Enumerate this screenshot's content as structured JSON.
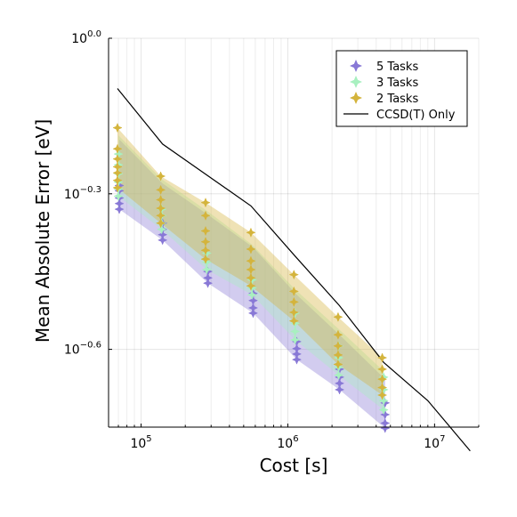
{
  "chart_data": {
    "type": "scatter",
    "title": "",
    "xlabel": "Cost [s]",
    "ylabel": "Mean Absolute Error [eV]",
    "x_scale": "log10",
    "y_scale": "log10",
    "xlim": [
      60000,
      20000000
    ],
    "ylim_log10": [
      -0.75,
      0.0
    ],
    "grid": true,
    "legend_position": "top-right",
    "x_ticks": [
      {
        "value": 100000,
        "base": "10",
        "exp": "5"
      },
      {
        "value": 1000000,
        "base": "10",
        "exp": "6"
      },
      {
        "value": 10000000,
        "base": "10",
        "exp": "7"
      }
    ],
    "y_ticks": [
      {
        "log10": 0.0,
        "base": "10",
        "exp": "0.0"
      },
      {
        "log10": -0.3,
        "base": "10",
        "exp": "−0.3"
      },
      {
        "log10": -0.6,
        "base": "10",
        "exp": "−0.6"
      }
    ],
    "series": [
      {
        "name": "5 Tasks",
        "color": "#8878d6",
        "marker": "star4",
        "band": {
          "x": [
            71000,
            140000,
            285000,
            580000,
            1150000,
            2250000,
            4600000
          ],
          "lower": [
            0.468,
            0.408,
            0.337,
            0.295,
            0.24,
            0.21,
            0.177
          ],
          "upper": [
            0.638,
            0.525,
            0.457,
            0.395,
            0.32,
            0.268,
            0.22
          ]
        },
        "points": [
          [
            71000,
            0.468
          ],
          [
            71000,
            0.48
          ],
          [
            71000,
            0.492
          ],
          [
            71000,
            0.508
          ],
          [
            71000,
            0.52
          ],
          [
            140000,
            0.408
          ],
          [
            140000,
            0.418
          ],
          [
            140000,
            0.428
          ],
          [
            140000,
            0.44
          ],
          [
            285000,
            0.337
          ],
          [
            285000,
            0.345
          ],
          [
            285000,
            0.355
          ],
          [
            580000,
            0.295
          ],
          [
            580000,
            0.302
          ],
          [
            580000,
            0.312
          ],
          [
            580000,
            0.322
          ],
          [
            1150000,
            0.24
          ],
          [
            1150000,
            0.246
          ],
          [
            1150000,
            0.252
          ],
          [
            1150000,
            0.26
          ],
          [
            2250000,
            0.21
          ],
          [
            2250000,
            0.216
          ],
          [
            2250000,
            0.222
          ],
          [
            2250000,
            0.23
          ],
          [
            4600000,
            0.177
          ],
          [
            4600000,
            0.181
          ],
          [
            4600000,
            0.188
          ],
          [
            4600000,
            0.198
          ]
        ]
      },
      {
        "name": "3 Tasks",
        "color": "#a8f0c0",
        "marker": "star4",
        "band": {
          "x": [
            70000,
            138000,
            280000,
            570000,
            1120000,
            2220000,
            4500000
          ],
          "lower": [
            0.496,
            0.428,
            0.358,
            0.32,
            0.262,
            0.224,
            0.192
          ],
          "upper": [
            0.65,
            0.535,
            0.465,
            0.4,
            0.328,
            0.275,
            0.228
          ]
        },
        "points": [
          [
            70000,
            0.496
          ],
          [
            70000,
            0.512
          ],
          [
            70000,
            0.528
          ],
          [
            70000,
            0.548
          ],
          [
            70000,
            0.57
          ],
          [
            70000,
            0.598
          ],
          [
            138000,
            0.428
          ],
          [
            138000,
            0.44
          ],
          [
            138000,
            0.455
          ],
          [
            138000,
            0.468
          ],
          [
            280000,
            0.358
          ],
          [
            280000,
            0.37
          ],
          [
            280000,
            0.385
          ],
          [
            570000,
            0.32
          ],
          [
            570000,
            0.33
          ],
          [
            570000,
            0.342
          ],
          [
            1120000,
            0.262
          ],
          [
            1120000,
            0.272
          ],
          [
            1120000,
            0.282
          ],
          [
            1120000,
            0.295
          ],
          [
            2220000,
            0.224
          ],
          [
            2220000,
            0.232
          ],
          [
            2220000,
            0.242
          ],
          [
            2220000,
            0.255
          ],
          [
            4500000,
            0.192
          ],
          [
            4500000,
            0.2
          ],
          [
            4500000,
            0.21
          ],
          [
            4500000,
            0.222
          ]
        ]
      },
      {
        "name": "2 Tasks",
        "color": "#d4b43c",
        "marker": "star4",
        "band": {
          "x": [
            69000,
            136000,
            275000,
            560000,
            1100000,
            2200000,
            4400000
          ],
          "lower": [
            0.515,
            0.44,
            0.375,
            0.333,
            0.285,
            0.235,
            0.205
          ],
          "upper": [
            0.672,
            0.542,
            0.482,
            0.422,
            0.35,
            0.29,
            0.242
          ]
        },
        "points": [
          [
            69000,
            0.515
          ],
          [
            69000,
            0.532
          ],
          [
            69000,
            0.55
          ],
          [
            69000,
            0.565
          ],
          [
            69000,
            0.585
          ],
          [
            69000,
            0.612
          ],
          [
            69000,
            0.672
          ],
          [
            136000,
            0.44
          ],
          [
            136000,
            0.455
          ],
          [
            136000,
            0.47
          ],
          [
            136000,
            0.488
          ],
          [
            136000,
            0.51
          ],
          [
            136000,
            0.542
          ],
          [
            275000,
            0.375
          ],
          [
            275000,
            0.39
          ],
          [
            275000,
            0.405
          ],
          [
            275000,
            0.425
          ],
          [
            275000,
            0.455
          ],
          [
            275000,
            0.482
          ],
          [
            560000,
            0.333
          ],
          [
            560000,
            0.345
          ],
          [
            560000,
            0.358
          ],
          [
            560000,
            0.372
          ],
          [
            560000,
            0.392
          ],
          [
            560000,
            0.422
          ],
          [
            1100000,
            0.285
          ],
          [
            1100000,
            0.296
          ],
          [
            1100000,
            0.31
          ],
          [
            1100000,
            0.325
          ],
          [
            1100000,
            0.35
          ],
          [
            2200000,
            0.235
          ],
          [
            2200000,
            0.245
          ],
          [
            2200000,
            0.255
          ],
          [
            2200000,
            0.268
          ],
          [
            2200000,
            0.29
          ],
          [
            4400000,
            0.205
          ],
          [
            4400000,
            0.212
          ],
          [
            4400000,
            0.22
          ],
          [
            4400000,
            0.23
          ],
          [
            4400000,
            0.242
          ]
        ]
      },
      {
        "name": "CCSD(T) Only",
        "color": "#000000",
        "marker": "line",
        "x": [
          69000,
          140000,
          280000,
          560000,
          1120000,
          2250000,
          4500000,
          9000000,
          17500000
        ],
        "y": [
          0.8,
          0.625,
          0.545,
          0.475,
          0.38,
          0.305,
          0.237,
          0.2,
          0.16
        ]
      }
    ]
  }
}
